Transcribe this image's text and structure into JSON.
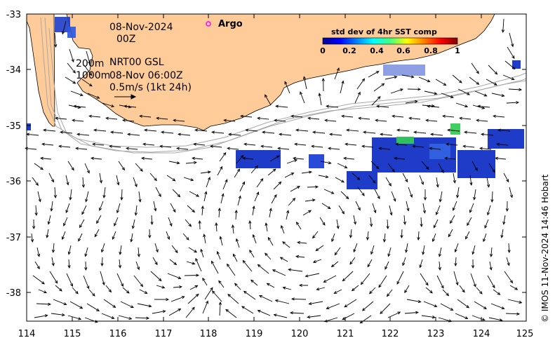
{
  "header": {
    "date": "08-Nov-2024",
    "time": "00Z",
    "depth_shallow": "200m",
    "depth_deep": "1000m",
    "product": "NRT00 GSL",
    "valid_time": "08-Nov 06:00Z",
    "scale_text": "0.5m/s (1kt 24h)"
  },
  "legend": {
    "argo_label": "Argo",
    "argo_color": "#ff00ff",
    "colorbar_title": "std dev of 4hr SST comp",
    "colorbar_ticks": [
      "0",
      "0.2",
      "0.4",
      "0.6",
      "0.8",
      "1"
    ]
  },
  "axes": {
    "x_ticks": [
      "114",
      "115",
      "116",
      "117",
      "118",
      "119",
      "120",
      "121",
      "122",
      "123",
      "124",
      "125"
    ],
    "y_ticks": [
      "-33",
      "-34",
      "-35",
      "-36",
      "-37",
      "-38"
    ],
    "x_range": [
      114,
      125
    ],
    "y_range": [
      -38.55,
      -33
    ]
  },
  "colors": {
    "land": "#ffcc99",
    "sst_low": "#1e3cc8",
    "isobath": "#a0a0a0"
  },
  "credit": "© IMOS 11-Nov-2024 14:46 Hobart"
}
